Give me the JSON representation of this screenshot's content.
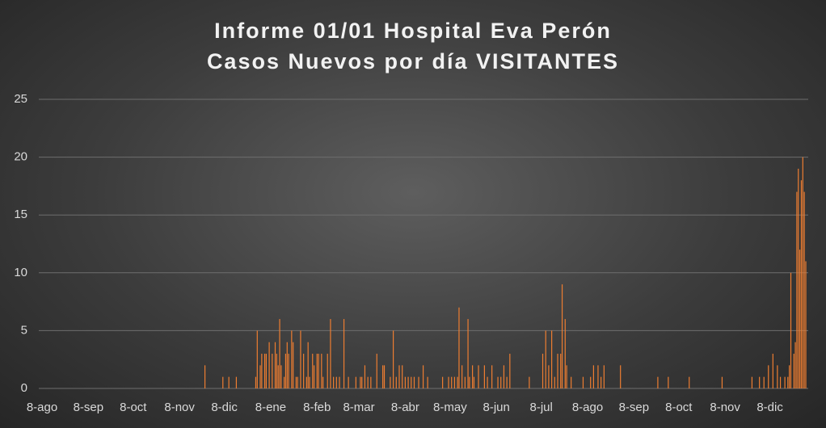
{
  "chart_data": {
    "type": "bar",
    "title": "Informe 01/01 Hospital Eva Perón",
    "subtitle": "Casos Nuevos por día VISITANTES",
    "color": "#ed7d31",
    "ylim": [
      0,
      25
    ],
    "yticks": [
      0,
      5,
      10,
      15,
      20,
      25
    ],
    "grid": true,
    "categories": [
      "8-ago",
      null,
      null,
      null,
      null,
      null,
      null,
      null,
      null,
      null,
      null,
      null,
      null,
      null,
      null,
      null,
      null,
      null,
      null,
      null,
      null,
      null,
      null,
      null,
      null,
      null,
      null,
      null,
      null,
      null,
      null,
      "8-sep",
      null,
      null,
      null,
      null,
      null,
      null,
      null,
      null,
      null,
      null,
      null,
      null,
      null,
      null,
      null,
      null,
      null,
      null,
      null,
      null,
      null,
      null,
      null,
      null,
      null,
      null,
      null,
      null,
      null,
      "8-oct",
      null,
      null,
      null,
      null,
      null,
      null,
      null,
      null,
      null,
      null,
      null,
      null,
      null,
      null,
      null,
      null,
      null,
      null,
      null,
      null,
      null,
      null,
      null,
      null,
      null,
      null,
      null,
      null,
      null,
      null,
      "8-nov",
      null,
      null,
      null,
      null,
      null,
      null,
      null,
      null,
      null,
      null,
      null,
      null,
      null,
      null,
      null,
      null,
      null,
      null,
      null,
      null,
      null,
      null,
      null,
      null,
      null,
      null,
      null,
      null,
      null,
      "8-dic",
      null,
      null,
      null,
      null,
      null,
      null,
      null,
      null,
      null,
      null,
      null,
      null,
      null,
      null,
      null,
      null,
      null,
      null,
      null,
      null,
      null,
      null,
      null,
      null,
      null,
      null,
      null,
      null,
      null,
      null,
      "8-ene",
      null,
      null,
      null,
      null,
      null,
      null,
      null,
      null,
      null,
      null,
      null,
      null,
      null,
      null,
      null,
      null,
      null,
      null,
      null,
      null,
      null,
      null,
      null,
      null,
      null,
      null,
      null,
      null,
      null,
      null,
      "8-feb",
      null,
      null,
      null,
      null,
      null,
      null,
      null,
      null,
      null,
      null,
      null,
      null,
      null,
      null,
      null,
      null,
      null,
      null,
      null,
      null,
      null,
      null,
      null,
      null,
      null,
      null,
      null,
      "8-mar",
      null,
      null,
      null,
      null,
      null,
      null,
      null,
      null,
      null,
      null,
      null,
      null,
      null,
      null,
      null,
      null,
      null,
      null,
      null,
      null,
      null,
      null,
      null,
      null,
      null,
      null,
      null,
      null,
      null,
      null,
      "8-abr",
      null,
      null,
      null,
      null,
      null,
      null,
      null,
      null,
      null,
      null,
      null,
      null,
      null,
      null,
      null,
      null,
      null,
      null,
      null,
      null,
      null,
      null,
      null,
      null,
      null,
      null,
      null,
      null,
      null,
      "8-may",
      null,
      null,
      null,
      null,
      null,
      null,
      null,
      null,
      null,
      null,
      null,
      null,
      null,
      null,
      null,
      null,
      null,
      null,
      null,
      null,
      null,
      null,
      null,
      null,
      null,
      null,
      null,
      null,
      null,
      null,
      "8-jun",
      null,
      null,
      null,
      null,
      null,
      null,
      null,
      null,
      null,
      null,
      null,
      null,
      null,
      null,
      null,
      null,
      null,
      null,
      null,
      null,
      null,
      null,
      null,
      null,
      null,
      null,
      null,
      null,
      null,
      "8-jul",
      null,
      null,
      null,
      null,
      null,
      null,
      null,
      null,
      null,
      null,
      null,
      null,
      null,
      null,
      null,
      null,
      null,
      null,
      null,
      null,
      null,
      null,
      null,
      null,
      null,
      null,
      null,
      null,
      null,
      null,
      "8-ago",
      null,
      null,
      null,
      null,
      null,
      null,
      null,
      null,
      null,
      null,
      null,
      null,
      null,
      null,
      null,
      null,
      null,
      null,
      null,
      null,
      null,
      null,
      null,
      null,
      null,
      null,
      null,
      null,
      null,
      null,
      "8-sep",
      null,
      null,
      null,
      null,
      null,
      null,
      null,
      null,
      null,
      null,
      null,
      null,
      null,
      null,
      null,
      null,
      null,
      null,
      null,
      null,
      null,
      null,
      null,
      null,
      null,
      null,
      null,
      null,
      null,
      "8-oct",
      null,
      null,
      null,
      null,
      null,
      null,
      null,
      null,
      null,
      null,
      null,
      null,
      null,
      null,
      null,
      null,
      null,
      null,
      null,
      null,
      null,
      null,
      null,
      null,
      null,
      null,
      null,
      null,
      null,
      null,
      "8-nov",
      null,
      null,
      null,
      null,
      null,
      null,
      null,
      null,
      null,
      null,
      null,
      null,
      null,
      null,
      null,
      null,
      null,
      null,
      null,
      null,
      null,
      null,
      null,
      null,
      null,
      null,
      null,
      null,
      null,
      "8-dic",
      null,
      null,
      null,
      null,
      null,
      null,
      null,
      null,
      null,
      null,
      null,
      null,
      null,
      null,
      null,
      null,
      null,
      null,
      null,
      null,
      null,
      null,
      null,
      null
    ],
    "values": [
      0,
      0,
      0,
      0,
      0,
      0,
      0,
      0,
      0,
      0,
      0,
      0,
      0,
      0,
      0,
      0,
      0,
      0,
      0,
      0,
      0,
      0,
      0,
      0,
      0,
      0,
      0,
      0,
      0,
      0,
      0,
      0,
      0,
      0,
      0,
      0,
      0,
      0,
      0,
      0,
      0,
      0,
      0,
      0,
      0,
      0,
      0,
      0,
      0,
      0,
      0,
      0,
      0,
      0,
      0,
      0,
      0,
      0,
      0,
      0,
      0,
      0,
      0,
      0,
      0,
      0,
      0,
      0,
      0,
      0,
      0,
      0,
      0,
      0,
      0,
      0,
      0,
      0,
      0,
      0,
      0,
      0,
      0,
      0,
      0,
      0,
      0,
      0,
      0,
      0,
      0,
      0,
      0,
      0,
      0,
      0,
      0,
      0,
      0,
      0,
      0,
      0,
      0,
      0,
      0,
      0,
      0,
      0,
      0,
      2,
      0,
      0,
      0,
      0,
      0,
      0,
      0,
      0,
      0,
      0,
      0,
      1,
      0,
      0,
      0,
      1,
      0,
      0,
      0,
      0,
      1,
      0,
      0,
      0,
      0,
      0,
      0,
      0,
      0,
      0,
      0,
      0,
      0,
      1,
      5,
      0,
      2,
      3,
      0,
      3,
      3,
      0,
      4,
      0,
      3,
      0,
      4,
      3,
      2,
      6,
      2,
      0,
      1,
      3,
      4,
      3,
      0,
      5,
      4,
      0,
      1,
      1,
      0,
      5,
      0,
      3,
      0,
      1,
      4,
      1,
      0,
      3,
      2,
      0,
      3,
      3,
      0,
      3,
      1,
      0,
      0,
      3,
      0,
      6,
      0,
      1,
      0,
      1,
      0,
      1,
      0,
      0,
      6,
      0,
      0,
      1,
      0,
      0,
      0,
      0,
      1,
      0,
      0,
      1,
      1,
      0,
      2,
      0,
      1,
      0,
      1,
      0,
      0,
      0,
      3,
      0,
      0,
      0,
      2,
      2,
      0,
      0,
      0,
      1,
      0,
      5,
      0,
      1,
      0,
      2,
      0,
      2,
      0,
      1,
      0,
      1,
      0,
      1,
      0,
      1,
      0,
      0,
      1,
      0,
      0,
      2,
      0,
      0,
      1,
      0,
      0,
      0,
      0,
      0,
      0,
      0,
      0,
      0,
      1,
      0,
      0,
      0,
      1,
      0,
      1,
      0,
      1,
      0,
      1,
      7,
      0,
      2,
      0,
      1,
      0,
      6,
      1,
      0,
      2,
      1,
      0,
      0,
      2,
      0,
      0,
      0,
      2,
      0,
      1,
      0,
      0,
      2,
      0,
      0,
      0,
      1,
      0,
      1,
      0,
      2,
      0,
      1,
      0,
      3,
      0,
      0,
      0,
      0,
      0,
      0,
      0,
      0,
      0,
      0,
      0,
      0,
      1,
      0,
      0,
      0,
      0,
      0,
      0,
      0,
      0,
      3,
      0,
      5,
      0,
      2,
      0,
      5,
      0,
      1,
      0,
      3,
      0,
      3,
      9,
      0,
      6,
      2,
      0,
      0,
      1,
      0,
      0,
      0,
      0,
      0,
      0,
      0,
      1,
      0,
      0,
      0,
      0,
      1,
      0,
      2,
      0,
      0,
      2,
      0,
      1,
      0,
      2,
      0,
      0,
      0,
      0,
      0,
      0,
      0,
      0,
      0,
      0,
      2,
      0,
      0,
      0,
      0,
      0,
      0,
      0,
      0,
      0,
      0,
      0,
      0,
      0,
      0,
      0,
      0,
      0,
      0,
      0,
      0,
      0,
      0,
      0,
      0,
      1,
      0,
      0,
      0,
      0,
      0,
      0,
      1,
      0,
      0,
      0,
      0,
      0,
      0,
      0,
      0,
      0,
      0,
      0,
      0,
      0,
      1,
      0,
      0,
      0,
      0,
      0,
      0,
      0,
      0,
      0,
      0,
      0,
      0,
      0,
      0,
      0,
      0,
      0,
      0,
      0,
      0,
      0,
      1,
      0,
      0,
      0,
      0,
      0,
      0,
      0,
      0,
      0,
      0,
      0,
      0,
      0,
      0,
      0,
      0,
      0,
      0,
      0,
      1,
      0,
      0,
      0,
      0,
      1,
      0,
      0,
      1,
      0,
      0,
      2,
      0,
      0,
      3,
      0,
      0,
      2,
      0,
      1,
      0,
      0,
      1,
      0,
      1,
      2,
      10,
      0,
      3,
      4,
      17,
      19,
      12,
      18,
      20,
      17,
      11
    ]
  }
}
